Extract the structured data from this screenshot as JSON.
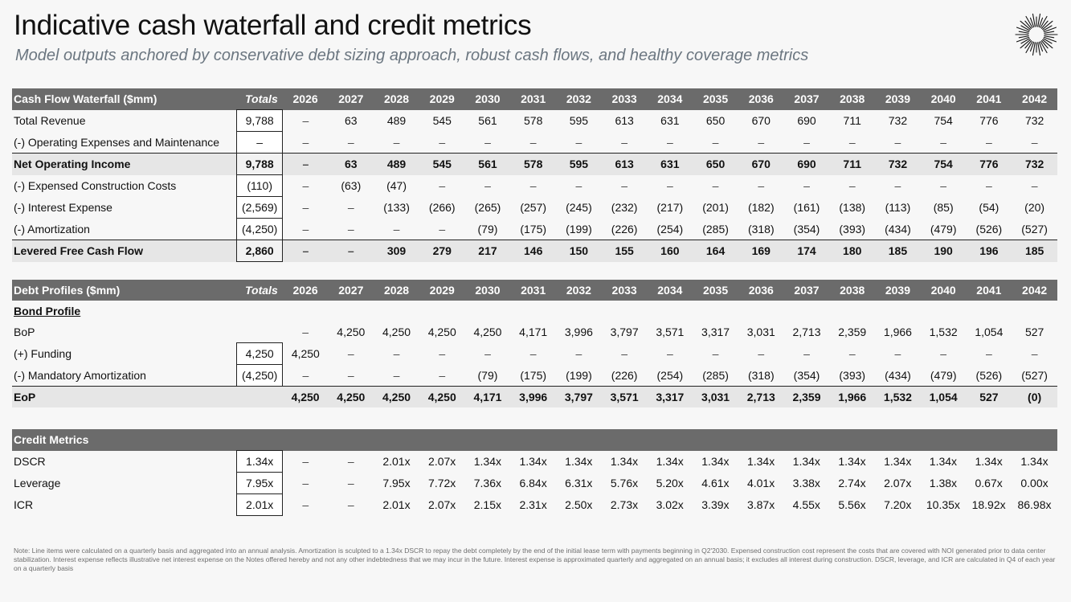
{
  "title": "Indicative cash waterfall and credit metrics",
  "subtitle": "Model outputs anchored by conservative debt sizing approach, robust cash flows, and healthy coverage metrics",
  "years": [
    "2026",
    "2027",
    "2028",
    "2029",
    "2030",
    "2031",
    "2032",
    "2033",
    "2034",
    "2035",
    "2036",
    "2037",
    "2038",
    "2039",
    "2040",
    "2041",
    "2042"
  ],
  "totals_label": "Totals",
  "cash_flow": {
    "header": "Cash Flow Waterfall ($mm)",
    "rows": [
      {
        "label": "Total Revenue",
        "total": "9,788",
        "values": [
          "–",
          "63",
          "489",
          "545",
          "561",
          "578",
          "595",
          "613",
          "631",
          "650",
          "670",
          "690",
          "711",
          "732",
          "754",
          "776",
          "732"
        ]
      },
      {
        "label": "(-) Operating Expenses and Maintenance",
        "total": "–",
        "values": [
          "–",
          "–",
          "–",
          "–",
          "–",
          "–",
          "–",
          "–",
          "–",
          "–",
          "–",
          "–",
          "–",
          "–",
          "–",
          "–",
          "–"
        ]
      },
      {
        "label": "Net Operating Income",
        "total": "9,788",
        "values": [
          "–",
          "63",
          "489",
          "545",
          "561",
          "578",
          "595",
          "613",
          "631",
          "650",
          "670",
          "690",
          "711",
          "732",
          "754",
          "776",
          "732"
        ]
      },
      {
        "label": "(-) Expensed Construction Costs",
        "total": "(110)",
        "values": [
          "–",
          "(63)",
          "(47)",
          "–",
          "–",
          "–",
          "–",
          "–",
          "–",
          "–",
          "–",
          "–",
          "–",
          "–",
          "–",
          "–",
          "–"
        ]
      },
      {
        "label": "(-) Interest Expense",
        "total": "(2,569)",
        "values": [
          "–",
          "–",
          "(133)",
          "(266)",
          "(265)",
          "(257)",
          "(245)",
          "(232)",
          "(217)",
          "(201)",
          "(182)",
          "(161)",
          "(138)",
          "(113)",
          "(85)",
          "(54)",
          "(20)"
        ]
      },
      {
        "label": "(-) Amortization",
        "total": "(4,250)",
        "values": [
          "–",
          "–",
          "–",
          "–",
          "(79)",
          "(175)",
          "(199)",
          "(226)",
          "(254)",
          "(285)",
          "(318)",
          "(354)",
          "(393)",
          "(434)",
          "(479)",
          "(526)",
          "(527)"
        ]
      },
      {
        "label": "Levered Free Cash Flow",
        "total": "2,860",
        "values": [
          "–",
          "–",
          "309",
          "279",
          "217",
          "146",
          "150",
          "155",
          "160",
          "164",
          "169",
          "174",
          "180",
          "185",
          "190",
          "196",
          "185"
        ]
      }
    ]
  },
  "debt": {
    "header": "Debt Profiles ($mm)",
    "section_label": "Bond Profile",
    "rows": [
      {
        "label": "BoP",
        "total": "",
        "values": [
          "–",
          "4,250",
          "4,250",
          "4,250",
          "4,250",
          "4,171",
          "3,996",
          "3,797",
          "3,571",
          "3,317",
          "3,031",
          "2,713",
          "2,359",
          "1,966",
          "1,532",
          "1,054",
          "527"
        ]
      },
      {
        "label": "(+) Funding",
        "total": "4,250",
        "values": [
          "4,250",
          "–",
          "–",
          "–",
          "–",
          "–",
          "–",
          "–",
          "–",
          "–",
          "–",
          "–",
          "–",
          "–",
          "–",
          "–",
          "–"
        ]
      },
      {
        "label": "(-) Mandatory Amortization",
        "total": "(4,250)",
        "values": [
          "–",
          "–",
          "–",
          "–",
          "(79)",
          "(175)",
          "(199)",
          "(226)",
          "(254)",
          "(285)",
          "(318)",
          "(354)",
          "(393)",
          "(434)",
          "(479)",
          "(526)",
          "(527)"
        ]
      },
      {
        "label": "EoP",
        "total": "",
        "values": [
          "4,250",
          "4,250",
          "4,250",
          "4,250",
          "4,171",
          "3,996",
          "3,797",
          "3,571",
          "3,317",
          "3,031",
          "2,713",
          "2,359",
          "1,966",
          "1,532",
          "1,054",
          "527",
          "(0)"
        ]
      }
    ]
  },
  "credit": {
    "header": "Credit Metrics",
    "rows": [
      {
        "label": "DSCR",
        "total": "1.34x",
        "values": [
          "–",
          "–",
          "2.01x",
          "2.07x",
          "1.34x",
          "1.34x",
          "1.34x",
          "1.34x",
          "1.34x",
          "1.34x",
          "1.34x",
          "1.34x",
          "1.34x",
          "1.34x",
          "1.34x",
          "1.34x",
          "1.34x"
        ]
      },
      {
        "label": "Leverage",
        "total": "7.95x",
        "values": [
          "–",
          "–",
          "7.95x",
          "7.72x",
          "7.36x",
          "6.84x",
          "6.31x",
          "5.76x",
          "5.20x",
          "4.61x",
          "4.01x",
          "3.38x",
          "2.74x",
          "2.07x",
          "1.38x",
          "0.67x",
          "0.00x"
        ]
      },
      {
        "label": "ICR",
        "total": "2.01x",
        "values": [
          "–",
          "–",
          "2.01x",
          "2.07x",
          "2.15x",
          "2.31x",
          "2.50x",
          "2.73x",
          "3.02x",
          "3.39x",
          "3.87x",
          "4.55x",
          "5.56x",
          "7.20x",
          "10.35x",
          "18.92x",
          "86.98x"
        ]
      }
    ]
  },
  "note": "Note: Line items were calculated on a quarterly basis and aggregated into an annual analysis. Amortization is sculpted to a 1.34x DSCR to repay the debt completely by the end of the initial lease term with payments beginning in Q2'2030. Expensed construction cost represent the costs that are covered with NOI generated prior to data center stabilization. Interest expense reflects illustrative net interest expense on the Notes offered hereby and not any other indebtedness that we may incur in the future. Interest expense is approximated quarterly and aggregated on an annual basis; it excludes all interest during construction. DSCR, leverage, and ICR are calculated in Q4 of each year on a quarterly basis",
  "colors": {
    "header_bg": "#6b6b6b",
    "shade_bg": "#e6e6e6",
    "subtitle": "#6b7680"
  },
  "logo_icon": "starburst-logo-icon"
}
